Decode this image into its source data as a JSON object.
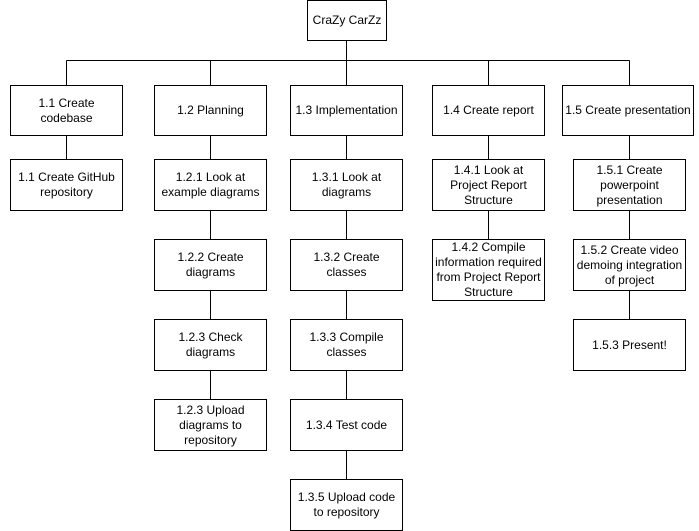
{
  "root": "CraZy CarZz",
  "branches": [
    {
      "label": "1.1 Create codebase",
      "children": [
        "1.1 Create GitHub repository"
      ]
    },
    {
      "label": "1.2 Planning",
      "children": [
        "1.2.1 Look at example diagrams",
        "1.2.2 Create diagrams",
        "1.2.3 Check diagrams",
        "1.2.3 Upload diagrams to repository"
      ]
    },
    {
      "label": "1.3 Implementation",
      "children": [
        "1.3.1 Look at diagrams",
        "1.3.2 Create classes",
        "1.3.3 Compile classes",
        "1.3.4 Test code",
        "1.3.5 Upload code to repository"
      ]
    },
    {
      "label": "1.4 Create report",
      "children": [
        "1.4.1 Look at Project Report Structure",
        "1.4.2 Compile information required from Project Report Structure"
      ]
    },
    {
      "label": "1.5 Create presentation",
      "children": [
        "1.5.1 Create powerpoint presentation",
        "1.5.2 Create video demoing integration of project",
        "1.5.3 Present!"
      ]
    }
  ]
}
